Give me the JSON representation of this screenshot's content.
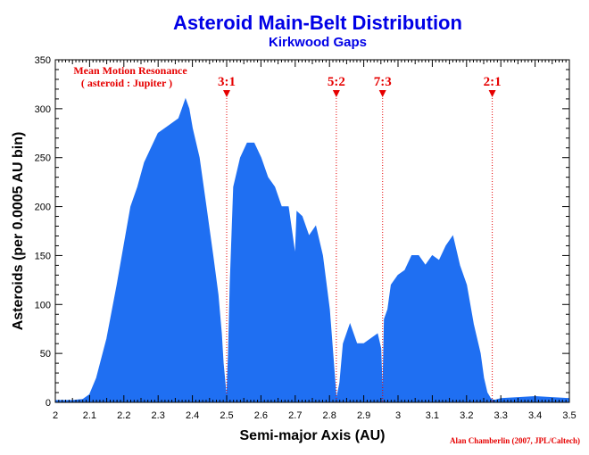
{
  "chart_data": {
    "type": "area",
    "title": "Asteroid Main-Belt Distribution",
    "subtitle": "Kirkwood Gaps",
    "xlabel": "Semi-major Axis (AU)",
    "ylabel": "Asteroids (per 0.0005 AU bin)",
    "xlim": [
      2.0,
      3.5
    ],
    "ylim": [
      0,
      350
    ],
    "x_ticks": [
      "2",
      "2.1",
      "2.2",
      "2.3",
      "2.4",
      "2.5",
      "2.6",
      "2.7",
      "2.8",
      "2.9",
      "3",
      "3.1",
      "3.2",
      "3.3",
      "3.4",
      "3.5"
    ],
    "y_ticks": [
      "0",
      "50",
      "100",
      "150",
      "200",
      "250",
      "300",
      "350"
    ],
    "grid": false,
    "annotation": {
      "line1": "Mean Motion Resonance",
      "line2": "( asteroid : Jupiter )"
    },
    "resonances": [
      {
        "label": "3:1",
        "x": 2.5
      },
      {
        "label": "5:2",
        "x": 2.82
      },
      {
        "label": "7:3",
        "x": 2.955
      },
      {
        "label": "2:1",
        "x": 3.275
      }
    ],
    "series": [
      {
        "x": [
          2.0,
          2.05,
          2.08,
          2.1,
          2.12,
          2.15,
          2.18,
          2.2,
          2.22,
          2.24,
          2.26,
          2.28,
          2.3,
          2.32,
          2.34,
          2.36,
          2.37,
          2.38,
          2.39,
          2.4,
          2.42,
          2.44,
          2.46,
          2.475,
          2.485,
          2.49,
          2.5,
          2.505,
          2.51,
          2.52,
          2.54,
          2.56,
          2.58,
          2.6,
          2.62,
          2.64,
          2.66,
          2.68,
          2.7,
          2.705,
          2.72,
          2.74,
          2.76,
          2.78,
          2.8,
          2.81,
          2.82,
          2.83,
          2.84,
          2.86,
          2.88,
          2.9,
          2.92,
          2.94,
          2.95,
          2.955,
          2.96,
          2.97,
          2.98,
          3.0,
          3.02,
          3.04,
          3.06,
          3.08,
          3.1,
          3.12,
          3.14,
          3.16,
          3.18,
          3.2,
          3.22,
          3.24,
          3.25,
          3.26,
          3.27,
          3.28,
          3.3,
          3.35,
          3.4,
          3.45,
          3.5
        ],
        "values": [
          2,
          2,
          3,
          8,
          25,
          65,
          120,
          160,
          200,
          220,
          245,
          260,
          275,
          280,
          285,
          290,
          300,
          310,
          300,
          280,
          250,
          200,
          150,
          110,
          70,
          40,
          3,
          50,
          120,
          220,
          250,
          265,
          265,
          250,
          230,
          220,
          200,
          200,
          150,
          195,
          190,
          170,
          180,
          150,
          95,
          50,
          3,
          20,
          60,
          80,
          60,
          60,
          65,
          70,
          55,
          3,
          85,
          95,
          120,
          130,
          135,
          150,
          150,
          140,
          150,
          145,
          160,
          170,
          140,
          120,
          80,
          50,
          25,
          10,
          4,
          2,
          4,
          5,
          6,
          5,
          4
        ]
      }
    ],
    "colors": {
      "fill": "#1f6ff2",
      "resonance": "#e60000",
      "title": "#0000e6"
    },
    "credit": "Alan Chamberlin (2007, JPL/Caltech)"
  }
}
